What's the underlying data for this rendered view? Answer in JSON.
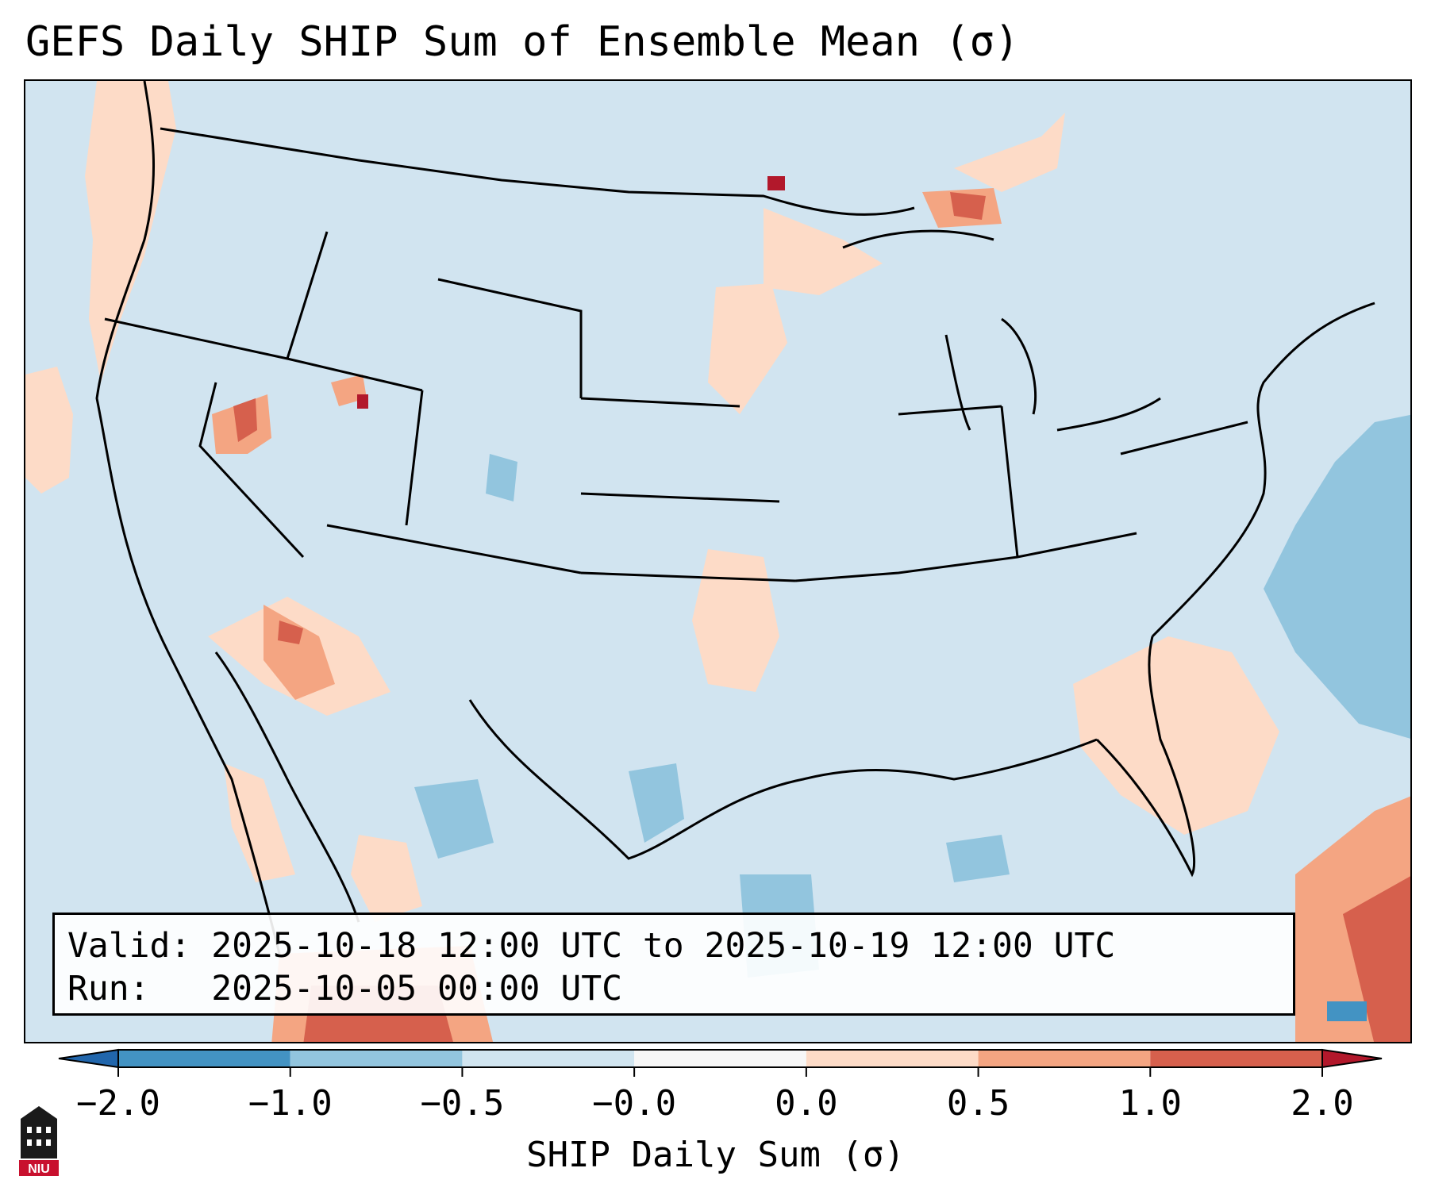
{
  "title": "GEFS Daily SHIP Sum of Ensemble Mean (σ)",
  "info": {
    "valid_label": "Valid:",
    "valid_value": "2025-10-18 12:00 UTC to 2025-10-19 12:00 UTC",
    "run_label": "Run:",
    "run_value": "2025-10-05 00:00 UTC"
  },
  "colorbar": {
    "label": "SHIP Daily Sum (σ)",
    "tick_labels": [
      "−2.0",
      "−1.0",
      "−0.5",
      "−0.0",
      "0.0",
      "0.5",
      "1.0",
      "2.0"
    ],
    "bin_colors": [
      "#4393c3",
      "#92c5de",
      "#d1e5f0",
      "#f7f7f7",
      "#fddbc7",
      "#f4a582",
      "#d6604d"
    ],
    "extend_min_color": "#2166ac",
    "extend_max_color": "#b2182b"
  },
  "map": {
    "background_color": "#d1e4f0",
    "outline_color": "#000000"
  },
  "logo": {
    "text": "NIU",
    "icon": "niu-logo-icon"
  }
}
